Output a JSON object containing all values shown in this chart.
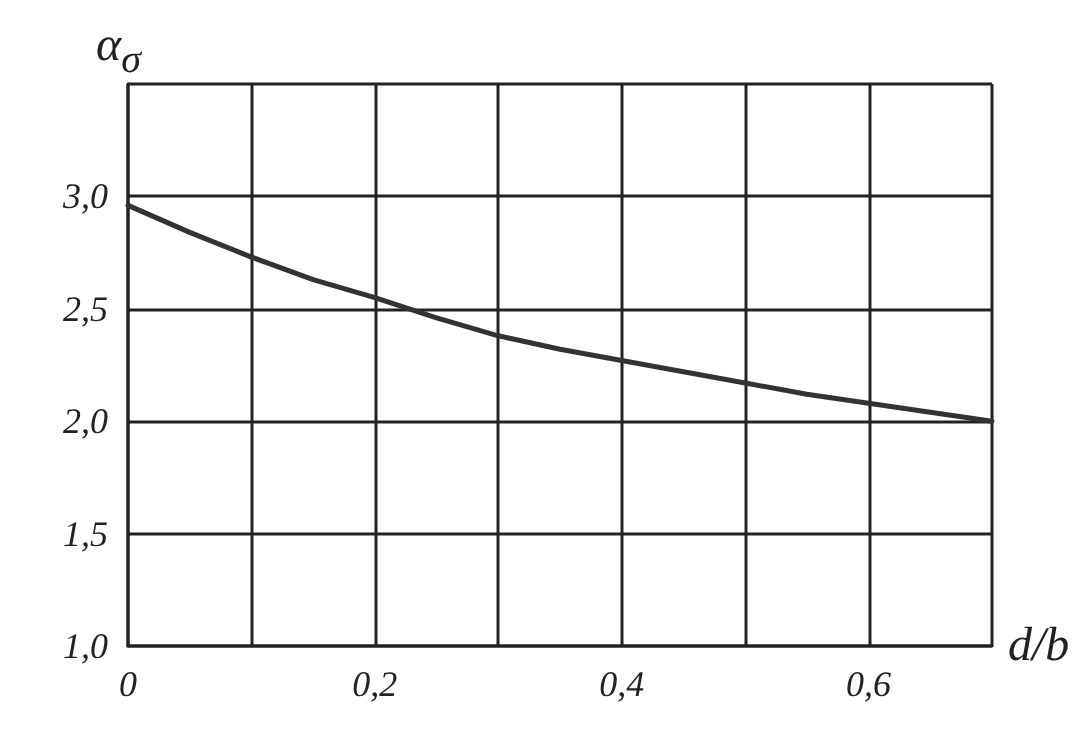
{
  "chart_data": {
    "type": "line",
    "xlabel": "d/b",
    "ylabel": "α$_{σ}$",
    "x": [
      0,
      0.05,
      0.1,
      0.15,
      0.2,
      0.25,
      0.3,
      0.35,
      0.4,
      0.45,
      0.5,
      0.55,
      0.6,
      0.65,
      0.7
    ],
    "series": [
      {
        "color": "#333333",
        "values": [
          2.96,
          2.84,
          2.73,
          2.63,
          2.55,
          2.46,
          2.38,
          2.32,
          2.27,
          2.22,
          2.17,
          2.12,
          2.08,
          2.04,
          2.0
        ]
      }
    ],
    "xlim": [
      0,
      0.7
    ],
    "ylim": [
      1.0,
      3.5
    ],
    "xticks": [
      {
        "value": 0,
        "label": "0"
      },
      {
        "value": 0.1,
        "label": null
      },
      {
        "value": 0.2,
        "label": "0,2"
      },
      {
        "value": 0.3,
        "label": null
      },
      {
        "value": 0.4,
        "label": "0,4"
      },
      {
        "value": 0.5,
        "label": null
      },
      {
        "value": 0.6,
        "label": "0,6"
      },
      {
        "value": 0.7,
        "label": null
      }
    ],
    "yticks": [
      {
        "value": 1.0,
        "label": "1,0"
      },
      {
        "value": 1.5,
        "label": "1,5"
      },
      {
        "value": 2.0,
        "label": "2,0"
      },
      {
        "value": 2.5,
        "label": "2,5"
      },
      {
        "value": 3.0,
        "label": "3,0"
      },
      {
        "value": 3.5,
        "label": null
      }
    ],
    "grid": true,
    "marker": "none",
    "line_style": "solid"
  }
}
